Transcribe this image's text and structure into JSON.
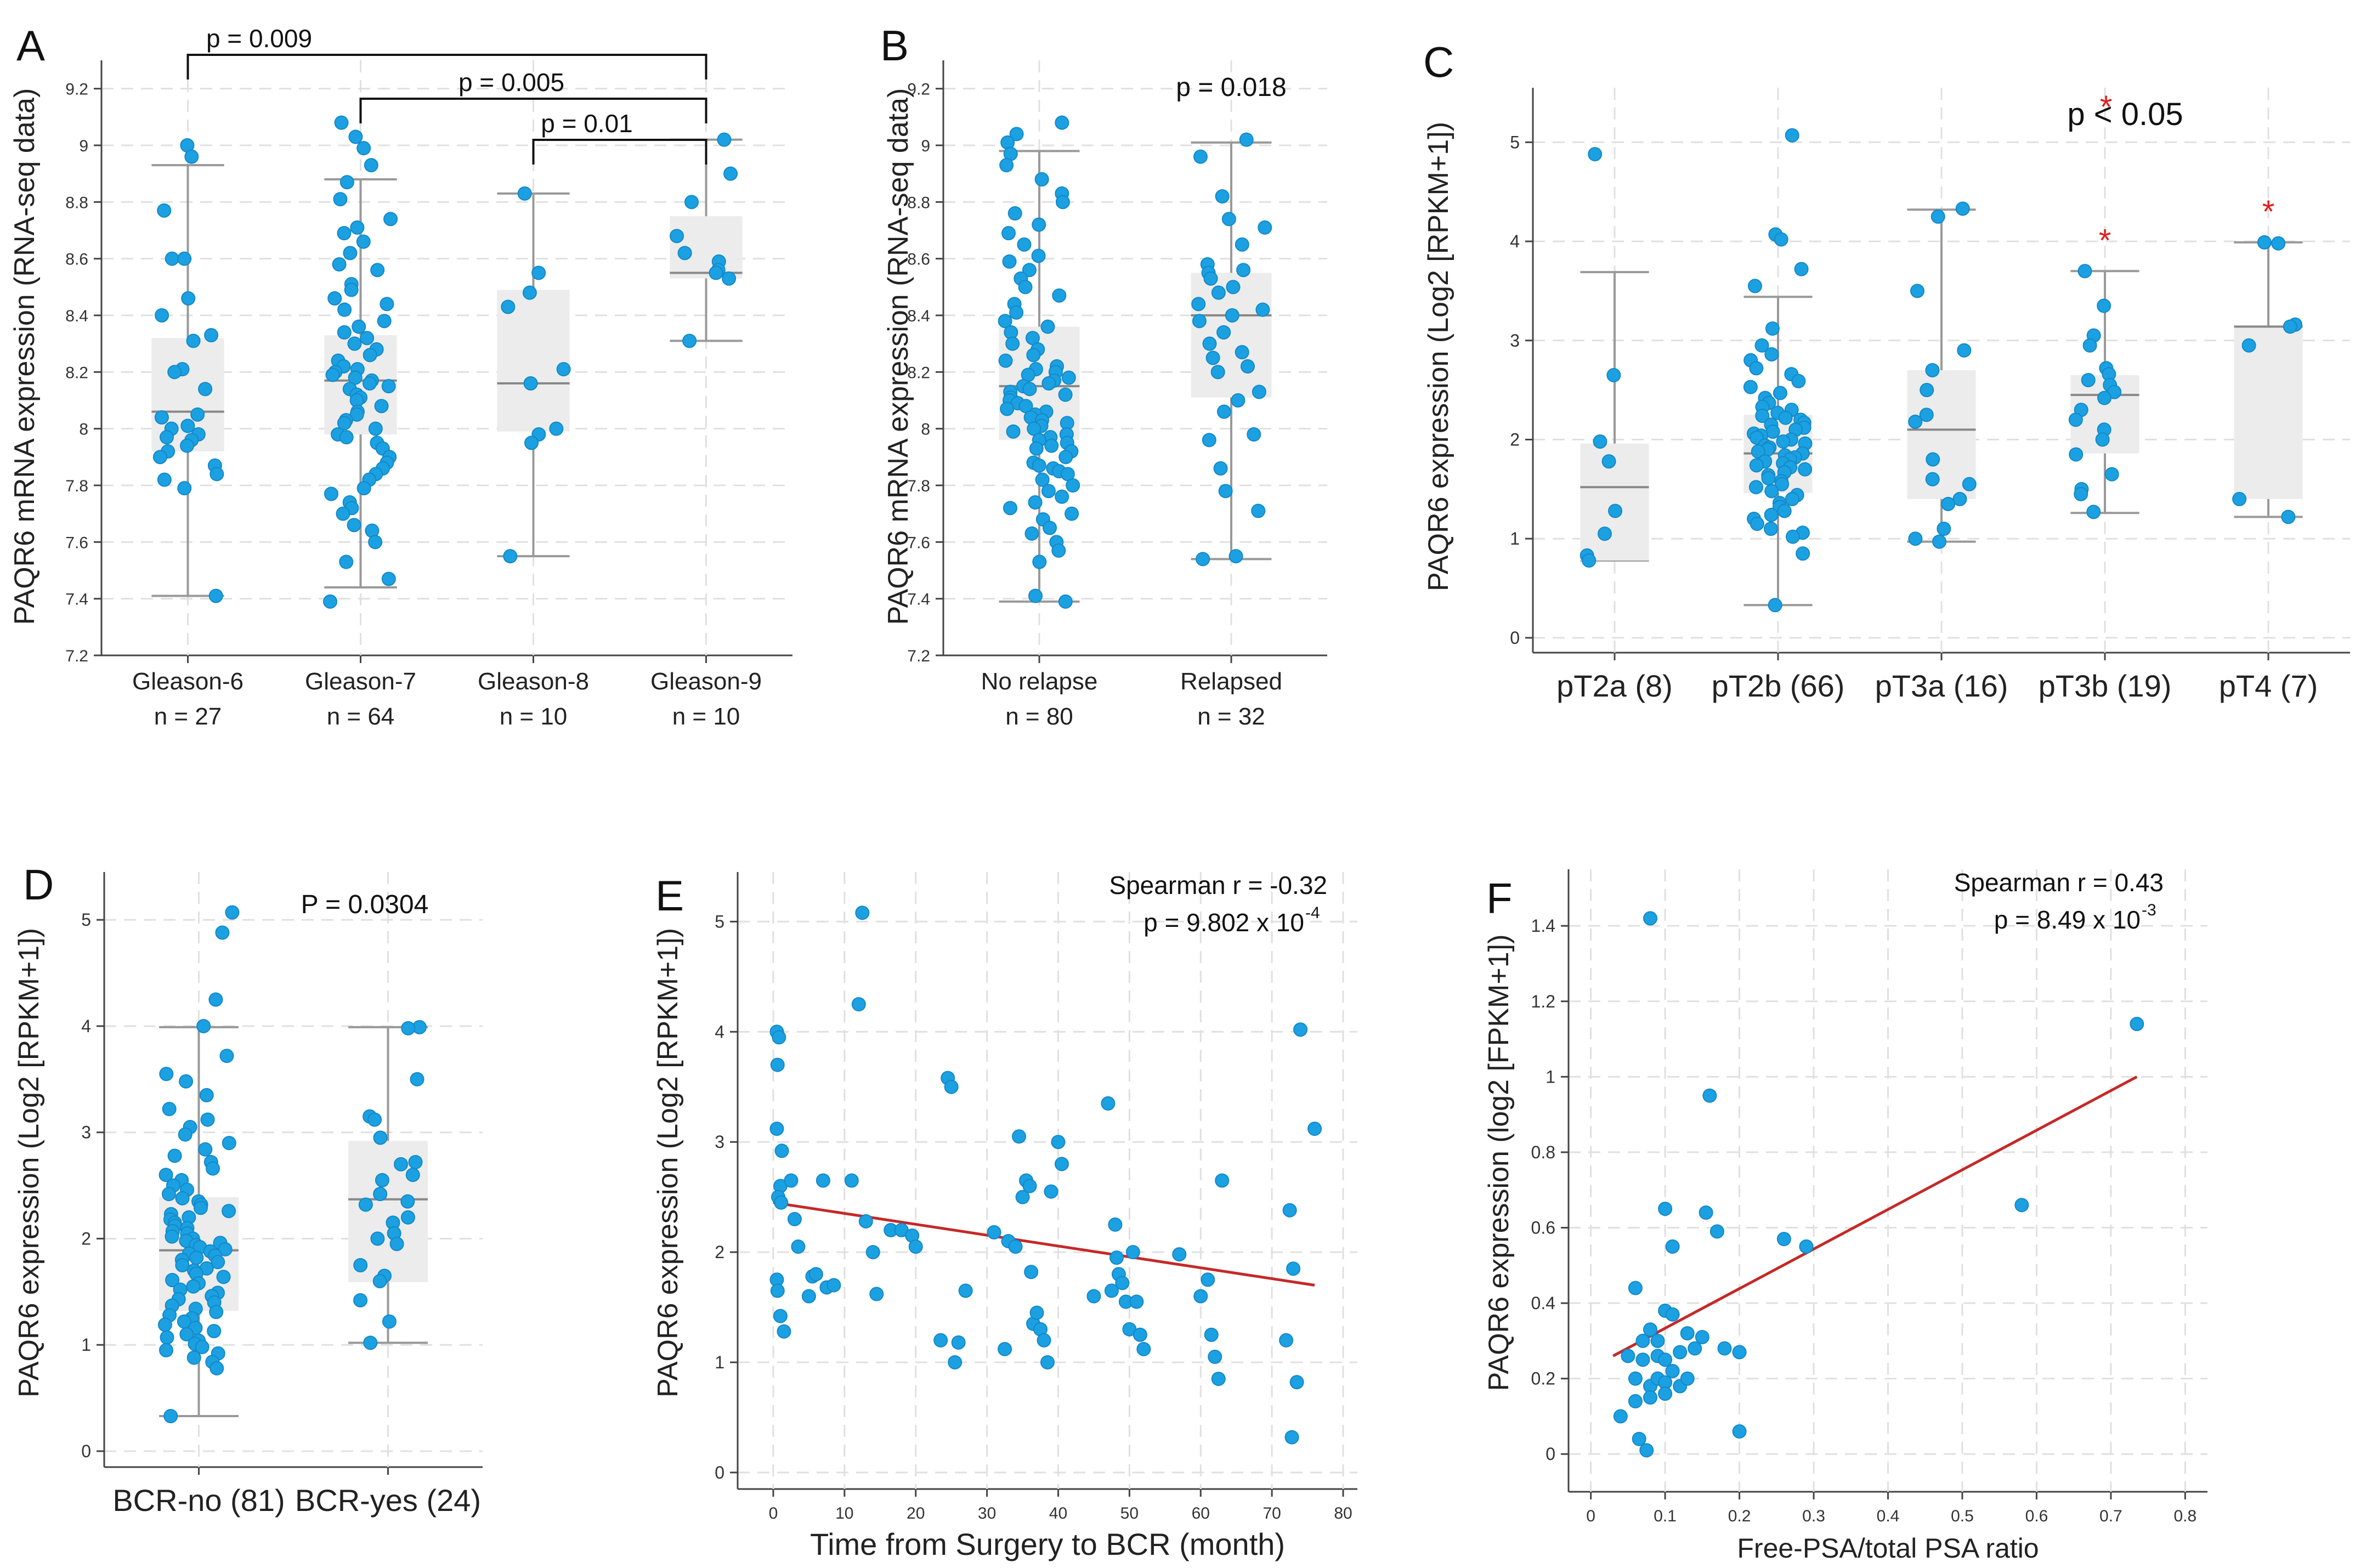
{
  "colors": {
    "point": "#1ba1e2",
    "box_fill": "#ececec",
    "whisker": "#999999",
    "grid": "#e0e0e0",
    "axis": "#444444",
    "text": "#222222",
    "star": "#e02020",
    "fit_line": "#c62828"
  },
  "chart_data": [
    {
      "id": "A",
      "type": "box",
      "panel_label": "A",
      "ylabel": "PAQR6 mRNA expression (RNA-seq data)",
      "ylim": [
        7.2,
        9.3
      ],
      "yticks": [
        "7.2",
        "7.4",
        "7.6",
        "7.8",
        "8",
        "8.2",
        "8.4",
        "8.6",
        "8.8",
        "9",
        "9.2"
      ],
      "categories": [
        {
          "label": "Gleason-6",
          "sublabel": "n = 27",
          "q1": 7.92,
          "median": 8.06,
          "q3": 8.32,
          "wlo": 7.41,
          "whi": 8.93,
          "points": [
            9.0,
            8.96,
            8.77,
            8.6,
            8.6,
            8.46,
            8.4,
            8.33,
            8.31,
            8.21,
            8.2,
            8.14,
            8.05,
            8.04,
            8.01,
            8.0,
            7.98,
            7.97,
            7.96,
            7.94,
            7.92,
            7.9,
            7.87,
            7.84,
            7.82,
            7.79,
            7.41
          ]
        },
        {
          "label": "Gleason-7",
          "sublabel": "n = 64",
          "q1": 7.98,
          "median": 8.17,
          "q3": 8.33,
          "wlo": 7.44,
          "whi": 8.88,
          "points": [
            9.08,
            9.03,
            8.99,
            8.93,
            8.87,
            8.81,
            8.74,
            8.71,
            8.69,
            8.66,
            8.62,
            8.58,
            8.56,
            8.51,
            8.49,
            8.46,
            8.44,
            8.42,
            8.38,
            8.36,
            8.34,
            8.32,
            8.3,
            8.28,
            8.26,
            8.24,
            8.22,
            8.21,
            8.2,
            8.19,
            8.18,
            8.17,
            8.16,
            8.15,
            8.14,
            8.12,
            8.11,
            8.1,
            8.08,
            8.06,
            8.05,
            8.03,
            8.02,
            8.0,
            7.98,
            7.97,
            7.95,
            7.93,
            7.9,
            7.88,
            7.86,
            7.84,
            7.82,
            7.79,
            7.77,
            7.74,
            7.72,
            7.7,
            7.66,
            7.64,
            7.6,
            7.53,
            7.47,
            7.39
          ]
        },
        {
          "label": "Gleason-8",
          "sublabel": "n = 10",
          "q1": 7.99,
          "median": 8.16,
          "q3": 8.49,
          "wlo": 7.55,
          "whi": 8.83,
          "points": [
            8.83,
            8.55,
            8.48,
            8.43,
            8.21,
            8.16,
            8.0,
            7.98,
            7.95,
            7.55
          ]
        },
        {
          "label": "Gleason-9",
          "sublabel": "n = 10",
          "q1": 8.53,
          "median": 8.55,
          "q3": 8.75,
          "wlo": 8.31,
          "whi": 9.02,
          "points": [
            9.02,
            8.9,
            8.8,
            8.68,
            8.62,
            8.59,
            8.56,
            8.55,
            8.53,
            8.31
          ]
        }
      ],
      "brackets": [
        {
          "from": 0,
          "to": 3,
          "level": 0,
          "label": "p = 0.009"
        },
        {
          "from": 1,
          "to": 3,
          "level": 1,
          "label": "p = 0.005"
        },
        {
          "from": 2,
          "to": 3,
          "level": 2,
          "label": "p = 0.01"
        }
      ]
    },
    {
      "id": "B",
      "type": "box",
      "panel_label": "B",
      "ylabel": "PAQR6 mRNA expression (RNA-seq data)",
      "ylim": [
        7.2,
        9.3
      ],
      "yticks": [
        "7.2",
        "7.4",
        "7.6",
        "7.8",
        "8",
        "8.2",
        "8.4",
        "8.6",
        "8.8",
        "9",
        "9.2"
      ],
      "annotation": "p = 0.018",
      "categories": [
        {
          "label": "No relapse",
          "sublabel": "n = 80",
          "q1": 7.96,
          "median": 8.15,
          "q3": 8.36,
          "wlo": 7.39,
          "whi": 8.98,
          "points": [
            9.08,
            9.04,
            9.01,
            8.97,
            8.93,
            8.88,
            8.83,
            8.8,
            8.76,
            8.72,
            8.69,
            8.65,
            8.61,
            8.59,
            8.56,
            8.53,
            8.5,
            8.47,
            8.44,
            8.41,
            8.38,
            8.36,
            8.34,
            8.32,
            8.3,
            8.28,
            8.26,
            8.24,
            8.22,
            8.21,
            8.2,
            8.19,
            8.18,
            8.17,
            8.16,
            8.15,
            8.14,
            8.13,
            8.12,
            8.11,
            8.1,
            8.09,
            8.08,
            8.07,
            8.06,
            8.05,
            8.04,
            8.03,
            8.02,
            8.01,
            8.0,
            7.99,
            7.98,
            7.97,
            7.96,
            7.95,
            7.94,
            7.93,
            7.92,
            7.9,
            7.88,
            7.87,
            7.86,
            7.85,
            7.84,
            7.82,
            7.8,
            7.78,
            7.76,
            7.74,
            7.72,
            7.7,
            7.68,
            7.65,
            7.63,
            7.6,
            7.57,
            7.53,
            7.41,
            7.39
          ]
        },
        {
          "label": "Relapsed",
          "sublabel": "n = 32",
          "q1": 8.11,
          "median": 8.4,
          "q3": 8.55,
          "wlo": 7.54,
          "whi": 9.01,
          "points": [
            9.02,
            8.96,
            8.82,
            8.74,
            8.71,
            8.65,
            8.58,
            8.56,
            8.55,
            8.53,
            8.5,
            8.48,
            8.44,
            8.42,
            8.4,
            8.38,
            8.34,
            8.3,
            8.27,
            8.25,
            8.22,
            8.2,
            8.13,
            8.1,
            8.06,
            7.98,
            7.96,
            7.86,
            7.78,
            7.71,
            7.55,
            7.54
          ]
        }
      ]
    },
    {
      "id": "C",
      "type": "box",
      "panel_label": "C",
      "ylabel": "PAQR6 expression (Log2 [RPKM+1])",
      "ylim": [
        -0.15,
        5.55
      ],
      "yticks": [
        "0",
        "1",
        "2",
        "3",
        "4",
        "5"
      ],
      "annotation": "p < 0.05",
      "annotation_star": "*",
      "categories": [
        {
          "label": "pT2a (8)",
          "sublabel": "",
          "q1": 0.78,
          "median": 1.52,
          "q3": 1.96,
          "wlo": 0.78,
          "whi": 3.69,
          "star": false,
          "points": [
            4.88,
            2.65,
            1.98,
            1.78,
            1.28,
            1.05,
            0.83,
            0.78
          ]
        },
        {
          "label": "pT2b (66)",
          "sublabel": "",
          "q1": 1.46,
          "median": 1.86,
          "q3": 2.25,
          "wlo": 0.33,
          "whi": 3.44,
          "star": false,
          "points": [
            5.07,
            4.07,
            4.02,
            3.72,
            3.55,
            3.12,
            2.95,
            2.86,
            2.8,
            2.72,
            2.66,
            2.59,
            2.53,
            2.47,
            2.42,
            2.37,
            2.33,
            2.3,
            2.27,
            2.24,
            2.22,
            2.2,
            2.17,
            2.15,
            2.12,
            2.1,
            2.08,
            2.06,
            2.04,
            2.02,
            2.0,
            1.98,
            1.96,
            1.94,
            1.92,
            1.9,
            1.88,
            1.86,
            1.84,
            1.82,
            1.8,
            1.78,
            1.76,
            1.74,
            1.72,
            1.7,
            1.67,
            1.64,
            1.61,
            1.58,
            1.55,
            1.52,
            1.48,
            1.44,
            1.4,
            1.36,
            1.32,
            1.28,
            1.24,
            1.2,
            1.15,
            1.1,
            1.06,
            1.02,
            0.85,
            0.33
          ]
        },
        {
          "label": "pT3a (16)",
          "sublabel": "",
          "q1": 1.4,
          "median": 2.1,
          "q3": 2.7,
          "wlo": 0.97,
          "whi": 4.32,
          "star": false,
          "points": [
            4.33,
            4.25,
            3.5,
            2.9,
            2.7,
            2.5,
            2.25,
            2.18,
            1.8,
            1.6,
            1.55,
            1.4,
            1.35,
            1.1,
            1.0,
            0.97
          ]
        },
        {
          "label": "pT3b (19)",
          "sublabel": "",
          "q1": 1.86,
          "median": 2.45,
          "q3": 2.65,
          "wlo": 1.26,
          "whi": 3.7,
          "star": true,
          "points": [
            3.7,
            3.35,
            3.05,
            2.95,
            2.72,
            2.66,
            2.6,
            2.55,
            2.48,
            2.42,
            2.3,
            2.2,
            2.1,
            2.0,
            1.85,
            1.65,
            1.5,
            1.45,
            1.27
          ]
        },
        {
          "label": "pT4 (7)",
          "sublabel": "",
          "q1": 1.4,
          "median": 3.14,
          "q3": 3.14,
          "wlo": 1.22,
          "whi": 3.99,
          "star": true,
          "points": [
            3.99,
            3.98,
            3.16,
            3.14,
            2.95,
            1.4,
            1.22
          ]
        }
      ]
    },
    {
      "id": "D",
      "type": "box",
      "panel_label": "D",
      "ylabel": "PAQR6 expression (Log2 [RPKM+1])",
      "ylim": [
        -0.15,
        5.45
      ],
      "yticks": [
        "0",
        "1",
        "2",
        "3",
        "4",
        "5"
      ],
      "annotation": "P = 0.0304",
      "categories": [
        {
          "label": "BCR-no (81)",
          "sublabel": "",
          "q1": 1.32,
          "median": 1.89,
          "q3": 2.39,
          "wlo": 0.33,
          "whi": 3.99,
          "points": [
            5.07,
            4.88,
            4.25,
            4.0,
            3.72,
            3.55,
            3.48,
            3.35,
            3.22,
            3.12,
            3.05,
            2.98,
            2.9,
            2.84,
            2.78,
            2.72,
            2.66,
            2.6,
            2.55,
            2.5,
            2.46,
            2.42,
            2.38,
            2.35,
            2.32,
            2.29,
            2.26,
            2.23,
            2.2,
            2.18,
            2.15,
            2.12,
            2.1,
            2.07,
            2.05,
            2.02,
            2.0,
            1.98,
            1.96,
            1.94,
            1.92,
            1.9,
            1.88,
            1.86,
            1.84,
            1.82,
            1.8,
            1.78,
            1.75,
            1.72,
            1.7,
            1.67,
            1.64,
            1.61,
            1.58,
            1.55,
            1.52,
            1.49,
            1.46,
            1.43,
            1.4,
            1.37,
            1.34,
            1.31,
            1.28,
            1.25,
            1.22,
            1.19,
            1.16,
            1.13,
            1.1,
            1.07,
            1.04,
            1.01,
            0.98,
            0.95,
            0.92,
            0.88,
            0.84,
            0.78,
            0.33
          ]
        },
        {
          "label": "BCR-yes (24)",
          "sublabel": "",
          "q1": 1.59,
          "median": 2.37,
          "q3": 2.92,
          "wlo": 1.02,
          "whi": 3.99,
          "points": [
            3.99,
            3.98,
            3.5,
            3.15,
            3.12,
            2.95,
            2.72,
            2.7,
            2.6,
            2.55,
            2.42,
            2.35,
            2.32,
            2.2,
            2.15,
            2.05,
            2.0,
            1.95,
            1.75,
            1.65,
            1.6,
            1.42,
            1.22,
            1.02
          ]
        }
      ]
    },
    {
      "id": "E",
      "type": "scatter",
      "panel_label": "E",
      "xlabel": "Time from Surgery to BCR (month)",
      "ylabel": "PAQR6 expression (Log2 [RPKM+1])",
      "xlim": [
        -5,
        82
      ],
      "ylim": [
        -0.15,
        5.45
      ],
      "xticks": [
        "0",
        "10",
        "20",
        "30",
        "40",
        "50",
        "60",
        "70",
        "80"
      ],
      "yticks": [
        "0",
        "1",
        "2",
        "3",
        "4",
        "5"
      ],
      "annotation_line1": "Spearman r = -0.32",
      "annotation_line2": "p = 9.802 x 10",
      "annotation_exp": "-4",
      "fit": {
        "x": [
          0,
          76
        ],
        "y": [
          2.45,
          1.7
        ]
      },
      "x": [
        0.5,
        0.8,
        0.6,
        0.5,
        1.2,
        1.0,
        0.7,
        1.1,
        0.5,
        0.6,
        1.0,
        1.5,
        2.5,
        3.0,
        3.5,
        5.0,
        5.5,
        6.0,
        7.0,
        7.5,
        8.5,
        11.0,
        12.0,
        12.5,
        13.0,
        14.0,
        14.5,
        16.5,
        18.0,
        19.5,
        20.0,
        23.5,
        24.5,
        25.0,
        25.5,
        26.0,
        27.0,
        31.0,
        32.5,
        33.0,
        34.0,
        34.5,
        35.0,
        35.5,
        36.0,
        36.2,
        36.5,
        37.0,
        37.5,
        38.0,
        38.5,
        39.0,
        40.0,
        40.5,
        45.0,
        47.0,
        47.5,
        48.0,
        48.2,
        48.5,
        49.0,
        49.5,
        50.0,
        50.5,
        51.0,
        51.5,
        52.0,
        57.0,
        60.0,
        61.0,
        61.5,
        62.0,
        62.5,
        63.0,
        72.0,
        72.5,
        73.0,
        74.0,
        76.0,
        73.5,
        72.8
      ],
      "y": [
        4.0,
        3.95,
        3.7,
        3.12,
        2.92,
        2.6,
        2.5,
        2.45,
        1.75,
        1.65,
        1.42,
        1.28,
        2.65,
        2.3,
        2.05,
        1.6,
        1.78,
        1.8,
        2.65,
        1.68,
        1.7,
        2.65,
        4.25,
        5.08,
        2.28,
        2.0,
        1.62,
        2.2,
        2.2,
        2.15,
        2.05,
        1.2,
        3.58,
        3.5,
        1.0,
        1.18,
        1.65,
        2.18,
        1.12,
        2.1,
        2.05,
        3.05,
        2.5,
        2.65,
        2.6,
        1.82,
        1.35,
        1.45,
        1.3,
        1.2,
        1.0,
        2.55,
        3.0,
        2.8,
        1.6,
        3.35,
        1.65,
        2.25,
        1.95,
        1.8,
        1.72,
        1.55,
        1.3,
        2.0,
        1.55,
        1.25,
        1.12,
        1.98,
        1.6,
        1.75,
        1.25,
        1.05,
        0.85,
        2.65,
        1.2,
        2.38,
        1.85,
        4.02,
        3.12,
        0.82,
        0.32
      ]
    },
    {
      "id": "F",
      "type": "scatter",
      "panel_label": "F",
      "xlabel": "Free-PSA/total PSA ratio",
      "ylabel": "PAQR6 expression (log2 [FPKM+1])",
      "xlim": [
        -0.03,
        0.83
      ],
      "ylim": [
        -0.1,
        1.55
      ],
      "xticks": [
        "0",
        "0.1",
        "0.2",
        "0.3",
        "0.4",
        "0.5",
        "0.6",
        "0.7",
        "0.8"
      ],
      "yticks": [
        "0",
        "0.2",
        "0.4",
        "0.6",
        "0.8",
        "1",
        "1.2",
        "1.4"
      ],
      "annotation_line1": "Spearman r = 0.43",
      "annotation_line2": "p = 8.49 x 10",
      "annotation_exp": "-3",
      "fit": {
        "x": [
          0.03,
          0.735
        ],
        "y": [
          0.26,
          1.0
        ]
      },
      "x": [
        0.08,
        0.735,
        0.16,
        0.58,
        0.1,
        0.155,
        0.11,
        0.17,
        0.26,
        0.29,
        0.1,
        0.11,
        0.09,
        0.06,
        0.08,
        0.07,
        0.12,
        0.13,
        0.14,
        0.15,
        0.18,
        0.2,
        0.09,
        0.1,
        0.11,
        0.07,
        0.06,
        0.08,
        0.09,
        0.1,
        0.05,
        0.04,
        0.06,
        0.12,
        0.13,
        0.08,
        0.1,
        0.2,
        0.065,
        0.075
      ],
      "y": [
        1.42,
        1.14,
        0.95,
        0.66,
        0.65,
        0.64,
        0.55,
        0.59,
        0.57,
        0.55,
        0.38,
        0.37,
        0.3,
        0.44,
        0.33,
        0.3,
        0.27,
        0.32,
        0.28,
        0.31,
        0.28,
        0.27,
        0.26,
        0.25,
        0.22,
        0.25,
        0.2,
        0.18,
        0.2,
        0.19,
        0.26,
        0.1,
        0.14,
        0.18,
        0.2,
        0.15,
        0.16,
        0.06,
        0.04,
        0.01
      ]
    }
  ]
}
